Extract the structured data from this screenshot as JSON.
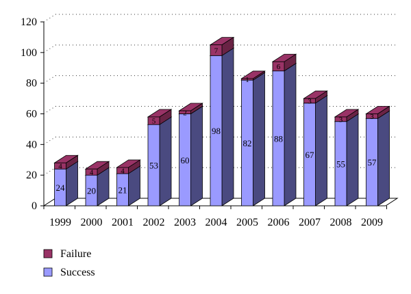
{
  "chart_data": {
    "type": "bar",
    "stacked": true,
    "three_d": true,
    "categories": [
      "1999",
      "2000",
      "2001",
      "2002",
      "2003",
      "2004",
      "2005",
      "2006",
      "2007",
      "2008",
      "2009"
    ],
    "series": [
      {
        "name": "Success",
        "values": [
          24,
          20,
          21,
          53,
          60,
          98,
          82,
          88,
          67,
          55,
          57
        ],
        "color": "#9a9aff",
        "side_color": "#4a4a80"
      },
      {
        "name": "Failure",
        "values": [
          4,
          4,
          4,
          5,
          2,
          7,
          1,
          6,
          3,
          3,
          3
        ],
        "color": "#993366",
        "side_color": "#6a2345"
      }
    ],
    "ylim": [
      0,
      120
    ],
    "yticks": [
      "0",
      "20",
      "40",
      "60",
      "80",
      "100",
      "120"
    ],
    "grid": "dotted-horizontal",
    "legend": "bottom-left",
    "title": "",
    "xlabel": "",
    "ylabel": ""
  }
}
